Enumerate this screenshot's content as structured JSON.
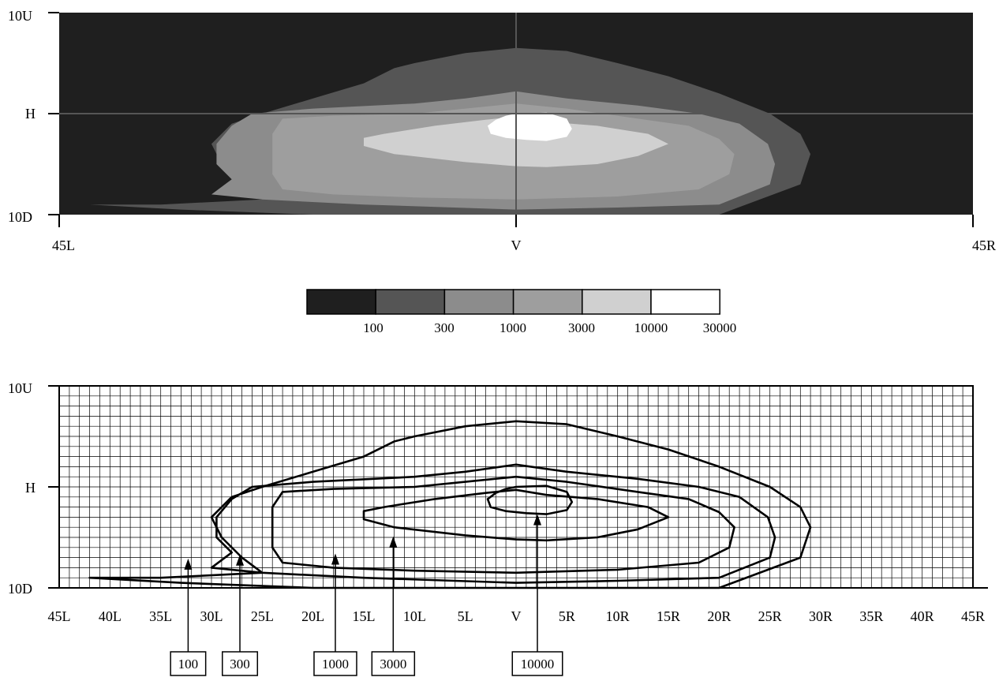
{
  "chart_data": [
    {
      "type": "heatmap",
      "x_ticks": [
        "45L",
        "V",
        "45R"
      ],
      "y_ticks": [
        "10U",
        "H",
        "10D"
      ],
      "xlim": [
        -45,
        45
      ],
      "ylim": [
        -10,
        10
      ],
      "background_color": "#1f1f1f",
      "crosshair_color": "#555555",
      "contour_levels": [
        {
          "level": 100,
          "color": "#555555",
          "outline": [
            [
              -42,
              -9
            ],
            [
              -33,
              -9.5
            ],
            [
              -20,
              -10
            ],
            [
              0,
              -10
            ],
            [
              20,
              -10
            ],
            [
              28,
              -7
            ],
            [
              29,
              -4
            ],
            [
              28,
              -2
            ],
            [
              25,
              0
            ],
            [
              20,
              2
            ],
            [
              15,
              3.7
            ],
            [
              10,
              5
            ],
            [
              5,
              6.2
            ],
            [
              0,
              6.5
            ],
            [
              -5,
              6
            ],
            [
              -10,
              5
            ],
            [
              -12,
              4.5
            ],
            [
              -15,
              3
            ],
            [
              -20,
              1.5
            ],
            [
              -25,
              0
            ],
            [
              -28,
              -1
            ],
            [
              -30,
              -3
            ],
            [
              -29,
              -5
            ],
            [
              -27,
              -7
            ],
            [
              -25,
              -8.5
            ],
            [
              -35,
              -9
            ]
          ]
        },
        {
          "level": 300,
          "color": "#8c8c8c",
          "outline": [
            [
              -30,
              -8
            ],
            [
              -25,
              -8.5
            ],
            [
              -15,
              -9
            ],
            [
              0,
              -9.5
            ],
            [
              10,
              -9.3
            ],
            [
              20,
              -9
            ],
            [
              25,
              -7
            ],
            [
              25.5,
              -5
            ],
            [
              24.8,
              -3
            ],
            [
              22,
              -1
            ],
            [
              18,
              0
            ],
            [
              12,
              0.8
            ],
            [
              5,
              1.5
            ],
            [
              0,
              2.2
            ],
            [
              -5,
              1.5
            ],
            [
              -10,
              1
            ],
            [
              -20,
              0.5
            ],
            [
              -26,
              0
            ],
            [
              -28,
              -1.2
            ],
            [
              -29.5,
              -3
            ],
            [
              -29.5,
              -5
            ],
            [
              -28,
              -6.5
            ]
          ]
        },
        {
          "level": 1000,
          "color": "#9e9e9e",
          "outline": [
            [
              -23,
              -7.5
            ],
            [
              -18,
              -8
            ],
            [
              -10,
              -8.3
            ],
            [
              0,
              -8.5
            ],
            [
              10,
              -8.2
            ],
            [
              18,
              -7.5
            ],
            [
              21,
              -6
            ],
            [
              21.5,
              -4
            ],
            [
              20,
              -2.5
            ],
            [
              17,
              -1.2
            ],
            [
              12,
              -0.5
            ],
            [
              5,
              0.5
            ],
            [
              0,
              1
            ],
            [
              -5,
              0.5
            ],
            [
              -10,
              0
            ],
            [
              -18,
              -0.2
            ],
            [
              -23,
              -0.5
            ],
            [
              -24,
              -2
            ],
            [
              -24,
              -4
            ],
            [
              -24,
              -6
            ]
          ]
        },
        {
          "level": 3000,
          "color": "#d0d0d0",
          "outline": [
            [
              -15,
              -3.2
            ],
            [
              -12,
              -4
            ],
            [
              -5,
              -4.8
            ],
            [
              0,
              -5.2
            ],
            [
              3,
              -5.3
            ],
            [
              8,
              -5
            ],
            [
              12,
              -4.2
            ],
            [
              15,
              -3
            ],
            [
              13,
              -2
            ],
            [
              8,
              -1.2
            ],
            [
              3,
              -0.8
            ],
            [
              0,
              -0.3
            ],
            [
              -3,
              -0.6
            ],
            [
              -8,
              -1.2
            ],
            [
              -13,
              -2
            ],
            [
              -15,
              -2.4
            ]
          ]
        },
        {
          "level": 10000,
          "color": "#ffffff",
          "outline": [
            [
              -2.5,
              -2
            ],
            [
              -1,
              -2.4
            ],
            [
              1,
              -2.6
            ],
            [
              3,
              -2.7
            ],
            [
              5,
              -2.3
            ],
            [
              5.5,
              -1.5
            ],
            [
              5,
              -0.5
            ],
            [
              3,
              0.1
            ],
            [
              0,
              0
            ],
            [
              -1,
              -0.2
            ],
            [
              -2,
              -0.6
            ],
            [
              -2.8,
              -1.2
            ]
          ]
        }
      ]
    },
    {
      "type": "legend",
      "colors": [
        "#1f1f1f",
        "#555555",
        "#8c8c8c",
        "#9e9e9e",
        "#d0d0d0",
        "#ffffff"
      ],
      "labels": [
        "100",
        "300",
        "1000",
        "3000",
        "10000",
        "30000"
      ]
    },
    {
      "type": "contour",
      "x_ticks": [
        "45L",
        "40L",
        "35L",
        "30L",
        "25L",
        "20L",
        "15L",
        "10L",
        "5L",
        "V",
        "5R",
        "10R",
        "15R",
        "20R",
        "25R",
        "30R",
        "35R",
        "40R",
        "45R"
      ],
      "y_ticks": [
        "10U",
        "H",
        "10D"
      ],
      "xlim": [
        -45,
        45
      ],
      "ylim": [
        -10,
        10
      ],
      "grid": true,
      "grid_step": 1,
      "callouts": [
        {
          "label": "100",
          "x": -32.3,
          "y": -7.1
        },
        {
          "label": "300",
          "x": -27.2,
          "y": -6.7
        },
        {
          "label": "1000",
          "x": -17.8,
          "y": -6.6
        },
        {
          "label": "3000",
          "x": -12.1,
          "y": -4.9
        },
        {
          "label": "10000",
          "x": 2.1,
          "y": -2.7
        }
      ]
    }
  ]
}
